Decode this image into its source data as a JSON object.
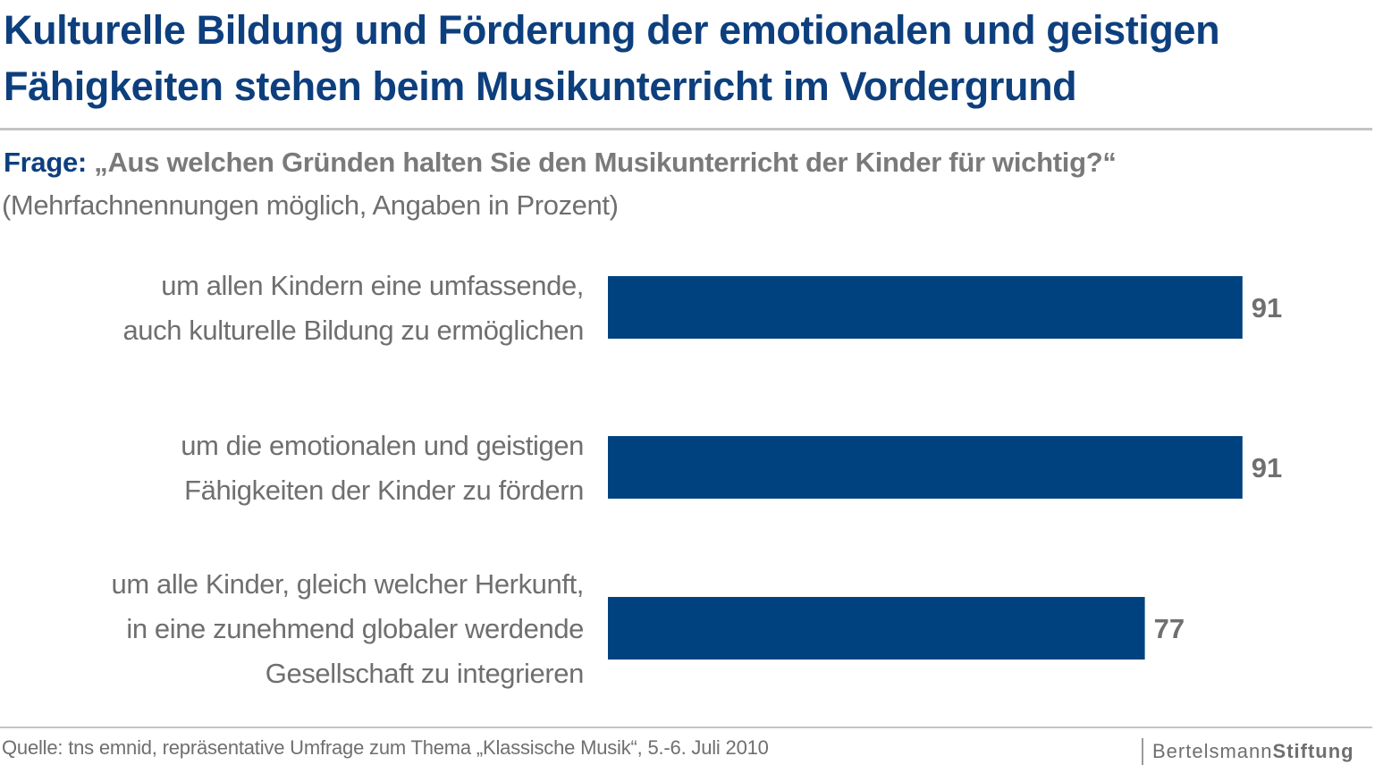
{
  "header": {
    "title_lines": [
      "Kulturelle Bildung und Förderung der emotionalen und geistigen",
      "Fähigkeiten stehen beim Musikunterricht im Vordergrund"
    ],
    "question_label": "Frage:",
    "question_text": " „Aus welchen Gründen halten Sie den Musikunterricht der Kinder für wichtig?“",
    "note": "(Mehrfachnennungen möglich, Angaben in Prozent)"
  },
  "chart_data": {
    "type": "bar",
    "orientation": "horizontal",
    "categories": [
      [
        "um allen Kindern eine umfassende,",
        "auch kulturelle Bildung zu ermöglichen"
      ],
      [
        "um die emotionalen und geistigen",
        "Fähigkeiten der Kinder zu fördern"
      ],
      [
        "um alle Kinder, gleich welcher Herkunft,",
        "in eine zunehmend globaler werdende",
        "Gesellschaft zu integrieren"
      ]
    ],
    "values": [
      91,
      91,
      77
    ],
    "data_labels": [
      "91",
      "91",
      "77"
    ],
    "xlim": [
      0,
      100
    ],
    "grid": false,
    "legend": "none",
    "bar_color": "#00427f",
    "label_color": "#6f6f6f"
  },
  "footer": {
    "source": "Quelle: tns emnid, repräsentative Umfrage zum Thema „Klassische Musik“, 5.-6. Juli 2010",
    "logo_regular": "Bertelsmann",
    "logo_bold": "Stiftung"
  }
}
